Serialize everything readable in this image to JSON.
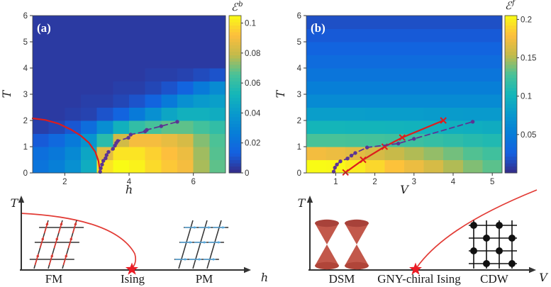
{
  "figure": {
    "panel_a": {
      "label": "(a)",
      "xlabel": "h",
      "ylabel": "T",
      "cb_symbol": "ℰ",
      "cb_sup": "b"
    },
    "panel_b": {
      "label": "(b)",
      "xlabel": "V",
      "ylabel": "T",
      "cb_symbol": "ℰ",
      "cb_sup": "f"
    },
    "schematic_left": {
      "ylabel": "T",
      "xlabel": "h",
      "phase_labels": [
        "FM",
        "Ising",
        "PM"
      ]
    },
    "schematic_right": {
      "ylabel": "T",
      "xlabel": "V",
      "phase_labels": [
        "DSM",
        "GNY-chiral Ising",
        "CDW"
      ]
    }
  },
  "chart_data": [
    {
      "id": "panel_a",
      "type": "heatmap",
      "panel_label": "(a)",
      "xlabel": "h",
      "ylabel": "T",
      "x_range": [
        1,
        7
      ],
      "y_range": [
        0,
        6
      ],
      "xticks": [
        2,
        4,
        6
      ],
      "yticks": [
        0,
        1,
        2,
        3,
        4,
        5,
        6
      ],
      "colorbar": {
        "label": "ℰ^b",
        "range": [
          0,
          0.105
        ],
        "ticks": [
          0,
          0.02,
          0.04,
          0.06,
          0.08,
          0.1
        ]
      },
      "grid": {
        "x_centers": [
          1.25,
          1.75,
          2.25,
          2.75,
          3.25,
          3.75,
          4.25,
          4.75,
          5.25,
          5.75,
          6.25,
          6.75
        ],
        "y_centers": [
          0.25,
          0.75,
          1.25,
          1.75,
          2.25,
          2.75,
          3.25,
          3.75,
          4.25,
          4.75,
          5.25,
          5.75
        ],
        "values_rows_bottom_to_top": [
          [
            0.022,
            0.027,
            0.035,
            0.048,
            0.1,
            0.105,
            0.103,
            0.098,
            0.094,
            0.09,
            0.076,
            0.068
          ],
          [
            0.02,
            0.024,
            0.032,
            0.045,
            0.086,
            0.1,
            0.1,
            0.096,
            0.092,
            0.088,
            0.075,
            0.067
          ],
          [
            0.012,
            0.017,
            0.025,
            0.037,
            0.058,
            0.082,
            0.09,
            0.09,
            0.087,
            0.083,
            0.072,
            0.066
          ],
          [
            0.005,
            0.007,
            0.011,
            0.019,
            0.034,
            0.05,
            0.06,
            0.065,
            0.068,
            0.068,
            0.064,
            0.06
          ],
          [
            0.004,
            0.004,
            0.005,
            0.006,
            0.01,
            0.015,
            0.025,
            0.035,
            0.045,
            0.05,
            0.05,
            0.048
          ],
          [
            0.004,
            0.004,
            0.004,
            0.005,
            0.005,
            0.007,
            0.01,
            0.015,
            0.025,
            0.035,
            0.04,
            0.042
          ],
          [
            0.004,
            0.004,
            0.004,
            0.004,
            0.004,
            0.005,
            0.005,
            0.007,
            0.01,
            0.015,
            0.025,
            0.033
          ],
          [
            0.004,
            0.004,
            0.004,
            0.004,
            0.004,
            0.004,
            0.004,
            0.005,
            0.005,
            0.006,
            0.008,
            0.01
          ],
          [
            0.004,
            0.004,
            0.004,
            0.004,
            0.004,
            0.004,
            0.004,
            0.004,
            0.004,
            0.004,
            0.004,
            0.004
          ],
          [
            0.004,
            0.004,
            0.004,
            0.004,
            0.004,
            0.004,
            0.004,
            0.004,
            0.004,
            0.004,
            0.004,
            0.004
          ],
          [
            0.004,
            0.004,
            0.004,
            0.004,
            0.004,
            0.004,
            0.004,
            0.004,
            0.004,
            0.004,
            0.004,
            0.004
          ],
          [
            0.004,
            0.004,
            0.004,
            0.004,
            0.004,
            0.004,
            0.004,
            0.004,
            0.004,
            0.004,
            0.004,
            0.004
          ]
        ]
      },
      "series": [
        {
          "name": "ising-transition-line",
          "style": "solid",
          "color": "#dd1d1d",
          "marker": "none",
          "points": [
            [
              1.0,
              2.08
            ],
            [
              1.4,
              2.02
            ],
            [
              1.8,
              1.88
            ],
            [
              2.2,
              1.65
            ],
            [
              2.5,
              1.42
            ],
            [
              2.75,
              1.15
            ],
            [
              2.95,
              0.8
            ],
            [
              3.05,
              0.45
            ],
            [
              3.1,
              0.02
            ]
          ]
        },
        {
          "name": "entanglement-crossing-line",
          "style": "dashed",
          "color": "#5c3494",
          "marker": "dot",
          "points": [
            [
              3.1,
              0.04
            ],
            [
              3.12,
              0.18
            ],
            [
              3.16,
              0.32
            ],
            [
              3.2,
              0.46
            ],
            [
              3.27,
              0.56
            ],
            [
              3.3,
              0.68
            ],
            [
              3.36,
              0.8
            ],
            [
              3.5,
              0.92
            ],
            [
              3.56,
              1.04
            ],
            [
              3.6,
              1.14
            ],
            [
              3.65,
              1.22
            ],
            [
              3.98,
              1.34
            ],
            [
              4.05,
              1.46
            ],
            [
              4.5,
              1.58
            ],
            [
              4.55,
              1.64
            ],
            [
              5.0,
              1.78
            ],
            [
              5.5,
              1.95
            ]
          ]
        }
      ]
    },
    {
      "id": "panel_b",
      "type": "heatmap",
      "panel_label": "(b)",
      "xlabel": "V",
      "ylabel": "T",
      "x_range": [
        0.25,
        5.25
      ],
      "y_range": [
        0,
        6
      ],
      "xticks": [
        1,
        2,
        3,
        4,
        5
      ],
      "yticks": [
        0,
        1,
        2,
        3,
        4,
        5,
        6
      ],
      "colorbar": {
        "label": "ℰ^f",
        "range": [
          0,
          0.205
        ],
        "ticks": [
          0.05,
          0.1,
          0.15,
          0.2
        ]
      },
      "grid": {
        "x_centers": [
          0.5,
          1.0,
          1.5,
          2.0,
          2.5,
          3.0,
          3.5,
          4.0,
          4.5,
          5.0
        ],
        "y_centers": [
          0.25,
          0.75,
          1.25,
          1.75,
          2.25,
          2.75,
          3.25,
          3.75,
          4.25,
          4.75,
          5.25,
          5.75
        ],
        "values_rows_bottom_to_top": [
          [
            0.205,
            0.204,
            0.198,
            0.19,
            0.181,
            0.172,
            0.162,
            0.15,
            0.14,
            0.132
          ],
          [
            0.175,
            0.172,
            0.168,
            0.162,
            0.156,
            0.15,
            0.144,
            0.137,
            0.13,
            0.124
          ],
          [
            0.128,
            0.128,
            0.127,
            0.126,
            0.124,
            0.122,
            0.119,
            0.116,
            0.112,
            0.109
          ],
          [
            0.102,
            0.102,
            0.101,
            0.101,
            0.1,
            0.099,
            0.098,
            0.096,
            0.095,
            0.093
          ],
          [
            0.081,
            0.081,
            0.081,
            0.08,
            0.08,
            0.08,
            0.079,
            0.079,
            0.078,
            0.078
          ],
          [
            0.064,
            0.064,
            0.064,
            0.064,
            0.064,
            0.064,
            0.064,
            0.064,
            0.064,
            0.064
          ],
          [
            0.053,
            0.053,
            0.053,
            0.053,
            0.053,
            0.053,
            0.053,
            0.053,
            0.053,
            0.053
          ],
          [
            0.044,
            0.044,
            0.044,
            0.044,
            0.044,
            0.044,
            0.044,
            0.044,
            0.044,
            0.044
          ],
          [
            0.036,
            0.036,
            0.036,
            0.036,
            0.036,
            0.036,
            0.036,
            0.036,
            0.036,
            0.036
          ],
          [
            0.029,
            0.029,
            0.029,
            0.029,
            0.029,
            0.029,
            0.029,
            0.029,
            0.029,
            0.029
          ],
          [
            0.023,
            0.023,
            0.023,
            0.023,
            0.023,
            0.023,
            0.023,
            0.023,
            0.023,
            0.023
          ],
          [
            0.018,
            0.018,
            0.018,
            0.018,
            0.018,
            0.018,
            0.018,
            0.018,
            0.018,
            0.018
          ]
        ]
      },
      "series": [
        {
          "name": "transition-line",
          "style": "solid",
          "color": "#dd1d1d",
          "marker": "x",
          "points": [
            [
              1.25,
              0.02
            ],
            [
              1.7,
              0.5
            ],
            [
              2.25,
              1.0
            ],
            [
              2.7,
              1.35
            ],
            [
              3.75,
              2.0
            ]
          ]
        },
        {
          "name": "entanglement-crossing-line",
          "style": "dashed",
          "color": "#5c3494",
          "marker": "dot",
          "points": [
            [
              0.95,
              0.05
            ],
            [
              0.98,
              0.2
            ],
            [
              1.03,
              0.32
            ],
            [
              1.12,
              0.44
            ],
            [
              1.3,
              0.55
            ],
            [
              1.4,
              0.66
            ],
            [
              1.5,
              0.76
            ],
            [
              1.8,
              0.97
            ],
            [
              2.6,
              1.12
            ],
            [
              3.0,
              1.3
            ],
            [
              4.5,
              1.95
            ]
          ]
        }
      ]
    },
    {
      "id": "schematic_left",
      "type": "diagram",
      "xlabel": "h",
      "ylabel": "T",
      "phase_labels": [
        "FM",
        "Ising",
        "PM"
      ],
      "critical_point_label": "Ising",
      "elements": [
        "fm-lattice-red-spins",
        "transition-curve",
        "critical-star",
        "pm-lattice-blue-arrows"
      ]
    },
    {
      "id": "schematic_right",
      "type": "diagram",
      "xlabel": "V",
      "ylabel": "T",
      "phase_labels": [
        "DSM",
        "GNY-chiral Ising",
        "CDW"
      ],
      "critical_point_label": "GNY-chiral Ising",
      "elements": [
        "dirac-cones",
        "transition-curve",
        "critical-star",
        "cdw-checkerboard-lattice"
      ]
    }
  ]
}
